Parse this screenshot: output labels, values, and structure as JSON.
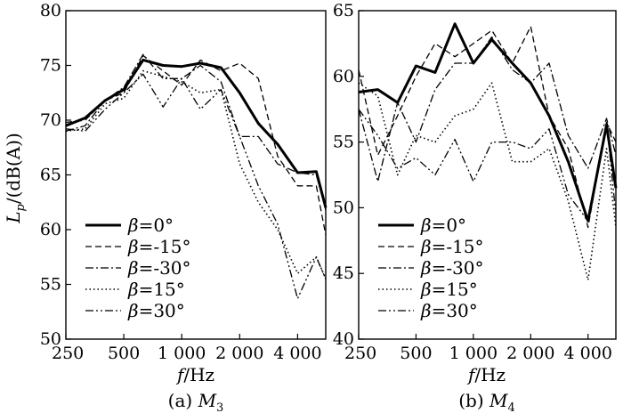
{
  "chart_data": [
    {
      "type": "line",
      "caption": "(a) M3",
      "caption_prefix": "(a) ",
      "caption_var": "M",
      "caption_sub": "3",
      "xlabel_var": "f",
      "xlabel_unit": "/Hz",
      "ylabel_var": "L",
      "ylabel_sub": "p",
      "ylabel_unit": "/(dB(A))",
      "x_scale": "log",
      "xlim": [
        250,
        5600
      ],
      "ylim": [
        50,
        80
      ],
      "xticks": [
        250,
        500,
        1000,
        2000,
        4000
      ],
      "xtick_labels": [
        "250",
        "500",
        "1 000",
        "2 000",
        "4 000"
      ],
      "yticks": [
        50,
        55,
        60,
        65,
        70,
        75,
        80
      ],
      "ytick_labels": [
        "50",
        "55",
        "60",
        "65",
        "70",
        "75",
        "80"
      ],
      "grid": false,
      "legend_position": "bottom-left",
      "x": [
        250,
        315,
        400,
        500,
        630,
        800,
        1000,
        1250,
        1600,
        2000,
        2500,
        3150,
        4000,
        5000,
        5600
      ],
      "series": [
        {
          "name": "β=0°",
          "label_var": "β",
          "label_val": "=0°",
          "style": "solid",
          "values": [
            69.5,
            70.2,
            71.8,
            72.8,
            75.5,
            75.0,
            74.9,
            75.2,
            74.8,
            72.5,
            69.7,
            67.8,
            65.2,
            65.3,
            62.0
          ]
        },
        {
          "name": "β=-15°",
          "label_var": "β",
          "label_val": "=-15°",
          "style": "dashed",
          "values": [
            69.8,
            70.0,
            71.8,
            72.5,
            75.9,
            74.5,
            73.2,
            75.5,
            74.5,
            75.2,
            73.8,
            66.7,
            64.0,
            64.0,
            59.5
          ]
        },
        {
          "name": "β=-30°",
          "label_var": "β",
          "label_val": "=-30°",
          "style": "dashdot",
          "values": [
            69.0,
            69.5,
            71.8,
            73.0,
            76.0,
            73.8,
            73.8,
            75.0,
            73.5,
            68.5,
            68.5,
            66.0,
            65.2,
            65.0,
            61.8
          ]
        },
        {
          "name": "β=15°",
          "label_var": "β",
          "label_val": "=15°",
          "style": "dotted",
          "values": [
            69.0,
            69.2,
            71.5,
            72.0,
            74.5,
            74.0,
            73.5,
            72.5,
            72.8,
            66.0,
            62.5,
            60.0,
            56.0,
            57.5,
            55.5
          ]
        },
        {
          "name": "β=30°",
          "label_var": "β",
          "label_val": "=30°",
          "style": "dashdotdot",
          "values": [
            69.2,
            69.0,
            71.0,
            72.5,
            74.2,
            71.2,
            73.8,
            71.0,
            72.8,
            68.5,
            64.0,
            60.5,
            53.7,
            57.5,
            55.5
          ]
        }
      ]
    },
    {
      "type": "line",
      "caption": "(b) M4",
      "caption_prefix": "(b) ",
      "caption_var": "M",
      "caption_sub": "4",
      "xlabel_var": "f",
      "xlabel_unit": "/Hz",
      "x_scale": "log",
      "xlim": [
        250,
        5600
      ],
      "ylim": [
        40,
        65
      ],
      "xticks": [
        250,
        500,
        1000,
        2000,
        4000
      ],
      "xtick_labels": [
        "250",
        "500",
        "1 000",
        "2 000",
        "4 000"
      ],
      "yticks": [
        40,
        45,
        50,
        55,
        60,
        65
      ],
      "ytick_labels": [
        "40",
        "45",
        "50",
        "55",
        "60",
        "65"
      ],
      "grid": false,
      "legend_position": "bottom-left",
      "x": [
        250,
        315,
        400,
        500,
        630,
        800,
        1000,
        1250,
        1600,
        2000,
        2500,
        3150,
        4000,
        5000,
        5600
      ],
      "series": [
        {
          "name": "β=0°",
          "label_var": "β",
          "label_val": "=0°",
          "style": "solid",
          "values": [
            58.8,
            59.0,
            58.0,
            60.8,
            60.3,
            64.0,
            61.0,
            62.8,
            61.0,
            59.5,
            57.0,
            53.5,
            49.0,
            56.3,
            51.5
          ]
        },
        {
          "name": "β=-15°",
          "label_var": "β",
          "label_val": "=-15°",
          "style": "dashed",
          "values": [
            60.5,
            54.0,
            57.0,
            60.0,
            62.5,
            61.5,
            62.5,
            63.5,
            61.0,
            63.8,
            57.0,
            54.5,
            48.5,
            56.5,
            55.0
          ]
        },
        {
          "name": "β=-30°",
          "label_var": "β",
          "label_val": "=-30°",
          "style": "dashdot",
          "values": [
            57.5,
            52.0,
            58.0,
            55.0,
            59.0,
            61.0,
            61.0,
            63.0,
            60.5,
            59.5,
            61.0,
            55.5,
            53.0,
            56.8,
            54.0
          ]
        },
        {
          "name": "β=15°",
          "label_var": "β",
          "label_val": "=15°",
          "style": "dotted",
          "values": [
            59.5,
            58.5,
            52.5,
            55.5,
            55.0,
            57.0,
            57.5,
            59.5,
            53.5,
            53.5,
            54.5,
            50.5,
            44.5,
            54.5,
            48.5
          ]
        },
        {
          "name": "β=30°",
          "label_var": "β",
          "label_val": "=30°",
          "style": "dashdotdot",
          "values": [
            57.5,
            55.5,
            53.0,
            53.8,
            52.5,
            55.2,
            52.0,
            55.0,
            55.0,
            54.5,
            56.0,
            51.0,
            49.0,
            56.5,
            49.5
          ]
        }
      ]
    }
  ]
}
